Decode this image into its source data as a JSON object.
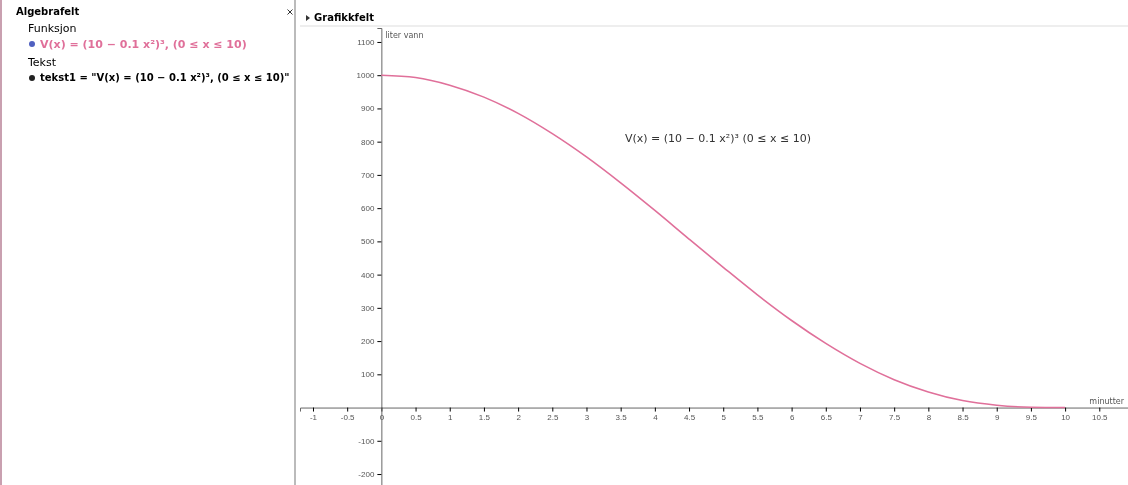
{
  "chart_data": {
    "type": "line",
    "title": "Grafikkfelt",
    "xlabel": "minutter",
    "ylabel": "liter vann",
    "annotations": [
      "Algebrafelt",
      "Funksjon",
      "V(x) = (10 − 0.1 x²)³,   (0 ≤ x ≤ 10)",
      "Tekst",
      "tekst1 = \"V(x) = (10 − 0.1 x²)³,   (0 ≤ x ≤ 10)\"",
      "V(x) = (10 − 0.1 x²)³    (0 ≤ x ≤ 10)"
    ],
    "x": [
      0,
      0.5,
      1,
      1.5,
      2,
      2.5,
      3,
      3.5,
      4,
      4.5,
      5,
      5.5,
      6,
      6.5,
      7,
      7.5,
      8,
      8.5,
      9,
      9.5,
      10
    ],
    "series": [
      {
        "color": "#e0709a",
        "values": [
          1000,
          993,
          970,
          934,
          885,
          824,
          754,
          676,
          593,
          507,
          422,
          339,
          262,
          193,
          133,
          84,
          47,
          21,
          7,
          1,
          0
        ]
      }
    ],
    "xlim": [
      -1.19,
      10.92
    ],
    "ylim": [
      -233,
      1142
    ],
    "xticks": [
      -1,
      -0.5,
      0,
      0.5,
      1,
      1.5,
      2,
      2.5,
      3,
      3.5,
      4,
      4.5,
      5,
      5.5,
      6,
      6.5,
      7,
      7.5,
      8,
      8.5,
      9,
      9.5,
      10,
      10.5
    ],
    "yticks": [
      -200,
      -100,
      100,
      200,
      300,
      400,
      500,
      600,
      700,
      800,
      900,
      1000,
      1100
    ],
    "marker": "none",
    "line_style": "solid",
    "grid": false
  }
}
